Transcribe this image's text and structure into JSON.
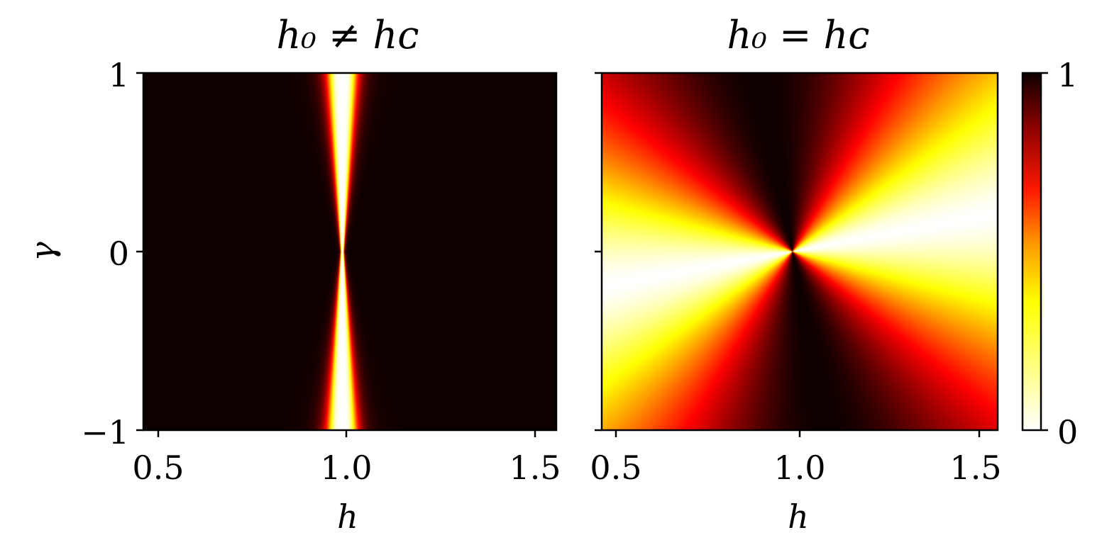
{
  "chart_data": [
    {
      "type": "heatmap",
      "title": "h₀ ≠ hᴄ",
      "xlabel": "h",
      "ylabel": "γ",
      "xlim": [
        0.45,
        1.55
      ],
      "ylim": [
        -1,
        1
      ],
      "xticks": [
        0.5,
        1.0,
        1.5
      ],
      "xtick_labels": [
        "0.5",
        "1.0",
        "1.5"
      ],
      "yticks": [
        -1,
        0,
        1
      ],
      "ytick_labels": [
        "−1",
        "0",
        "1"
      ],
      "colormap": "hot_r",
      "feature": {
        "center_h": 0.98,
        "center_gamma": 0,
        "description_values": "value near 1 everywhere except a narrow low-value band around h = 0.98 that pinches to a point at gamma = 0"
      }
    },
    {
      "type": "heatmap",
      "title": "h₀ = hᴄ",
      "xlabel": "h",
      "ylabel": "",
      "xlim": [
        0.45,
        1.55
      ],
      "ylim": [
        -1,
        1
      ],
      "xticks": [
        0.5,
        1.0,
        1.5
      ],
      "xtick_labels": [
        "0.5",
        "1.0",
        "1.5"
      ],
      "yticks": [
        -1,
        0,
        1
      ],
      "ytick_labels": [
        "",
        "",
        ""
      ],
      "colormap": "hot_r",
      "feature": {
        "center_h": 0.98,
        "center_gamma": 0,
        "min_line_slope": 0.37
      }
    }
  ],
  "colorbar": {
    "min": 0,
    "max": 1,
    "min_label": "0",
    "max_label": "1",
    "colors": [
      "#ffffff",
      "#ffff00",
      "#ff9a00",
      "#ff1a00",
      "#8b0000",
      "#0d0000"
    ]
  }
}
